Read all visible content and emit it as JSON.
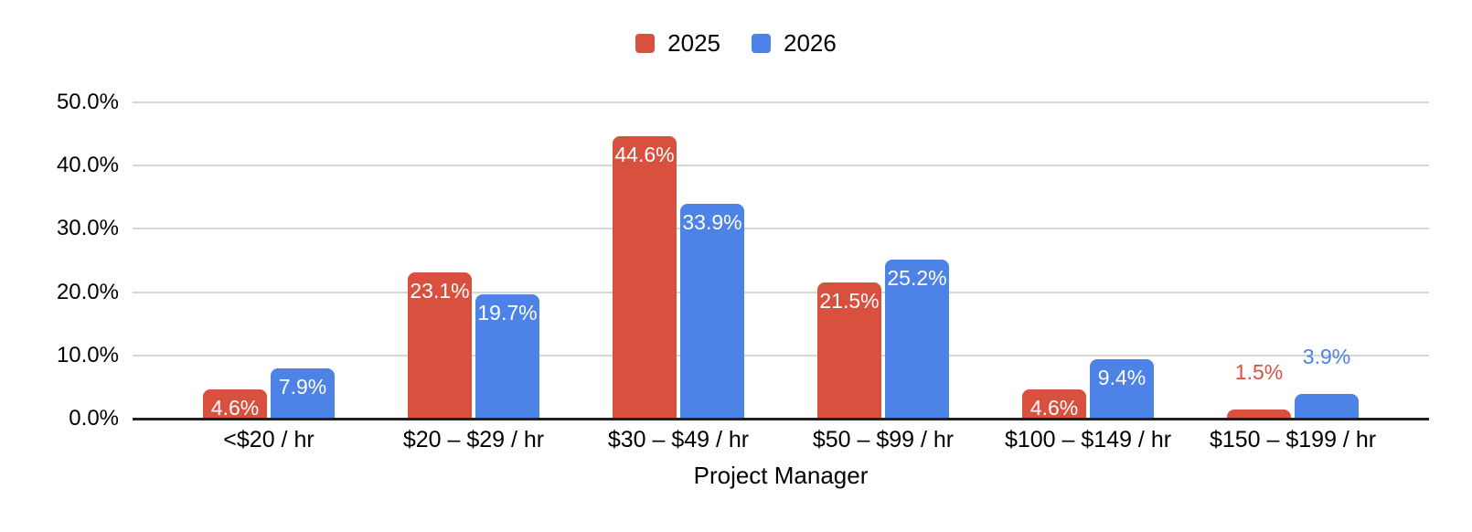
{
  "chart_data": {
    "type": "bar",
    "title": "",
    "xlabel": "Project Manager",
    "ylabel": "",
    "ylim": [
      0,
      50
    ],
    "grid": true,
    "legend_position": "top",
    "categories": [
      "<$20 / hr",
      "$20 – $29 / hr",
      "$30 – $49 / hr",
      "$50 – $99 / hr",
      "$100 – $149 / hr",
      "$150 – $199 / hr"
    ],
    "series": [
      {
        "name": "2025",
        "color": "#D8513F",
        "values": [
          4.6,
          23.1,
          44.6,
          21.5,
          4.6,
          1.5
        ],
        "labels": [
          "4.6%",
          "23.1%",
          "44.6%",
          "21.5%",
          "4.6%",
          "1.5%"
        ]
      },
      {
        "name": "2026",
        "color": "#4D82E7",
        "values": [
          7.9,
          19.7,
          33.9,
          25.2,
          9.4,
          3.9
        ],
        "labels": [
          "7.9%",
          "19.7%",
          "33.9%",
          "25.2%",
          "9.4%",
          "3.9%"
        ]
      }
    ],
    "yticks": [
      {
        "value": 0,
        "label": "0.0%"
      },
      {
        "value": 10,
        "label": "10.0%"
      },
      {
        "value": 20,
        "label": "20.0%"
      },
      {
        "value": 30,
        "label": "30.0%"
      },
      {
        "value": 40,
        "label": "40.0%"
      },
      {
        "value": 50,
        "label": "50.0%"
      }
    ],
    "colors": {
      "gridline": "#D6D6D6",
      "axis_line": "#212121",
      "text": "#000000",
      "data_label_inside": "#FFFFFF"
    }
  }
}
